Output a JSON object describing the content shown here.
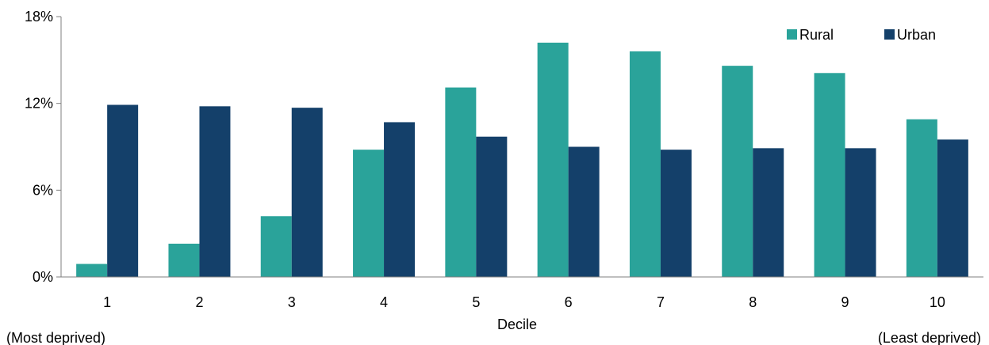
{
  "chart_data": {
    "type": "bar",
    "categories": [
      "1",
      "2",
      "3",
      "4",
      "5",
      "6",
      "7",
      "8",
      "9",
      "10"
    ],
    "series": [
      {
        "name": "Rural",
        "color": "#2aa39a",
        "values": [
          0.9,
          2.3,
          4.2,
          8.8,
          13.1,
          16.2,
          15.6,
          14.6,
          14.1,
          10.9
        ]
      },
      {
        "name": "Urban",
        "color": "#14406a",
        "values": [
          11.9,
          11.8,
          11.7,
          10.7,
          9.7,
          9.0,
          8.8,
          8.9,
          8.9,
          9.5
        ]
      }
    ],
    "xlabel": "Decile",
    "ylabel": "",
    "ylim": [
      0,
      18
    ],
    "yticks": [
      0,
      6,
      12,
      18
    ],
    "ytick_labels": [
      "0%",
      "6%",
      "12%",
      "18%"
    ],
    "grid": false,
    "legend_position": "top-right",
    "annotations": {
      "left": "(Most deprived)",
      "right": "(Least deprived)"
    }
  }
}
